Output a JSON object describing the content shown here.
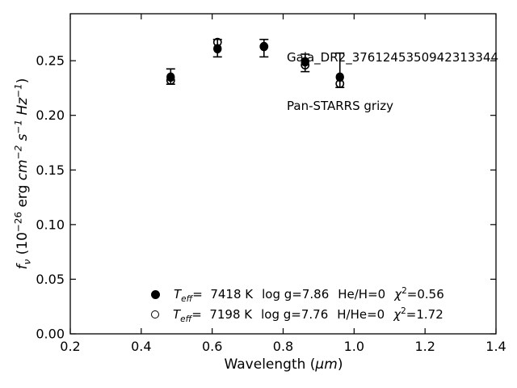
{
  "figure": {
    "background": "#ffffff",
    "foreground": "#000000"
  },
  "axes": {
    "xlabel": {
      "pre": "Wavelength (",
      "unit": "μm",
      "post": ")"
    },
    "ylabel": {
      "f": "f",
      "nu": "ν",
      "p1": " (10",
      "exp": "−26",
      "p2": " erg ",
      "cm": "cm",
      "cm_exp": "−2",
      "s": " s",
      "s_exp": "−1",
      "hz": " Hz",
      "hz_exp": "−1",
      "p3": ")"
    }
  },
  "legend": {
    "entries": [
      {
        "marker": "filled-circle",
        "T": "T",
        "T_sub": "eff",
        "teff_value": "=  7418 K",
        "logg": "log g=7.86",
        "composition": "He/H=0",
        "chi": "χ",
        "chi_exp": "2",
        "chi_value": "=0.56"
      },
      {
        "marker": "open-circle",
        "T": "T",
        "T_sub": "eff",
        "teff_value": "=  7198 K",
        "logg": "log g=7.76",
        "composition": "H/He=0",
        "chi": "χ",
        "chi_exp": "2",
        "chi_value": "=1.72"
      }
    ]
  },
  "chart_data": {
    "type": "scatter",
    "title": "Gaia_DR2_3761245350942313344",
    "subtitle": "Pan-STARRS grizy",
    "xlabel": "Wavelength (μm)",
    "ylabel": "f_ν (10^−26 erg cm^−2 s^−1 Hz^−1)",
    "xlim": [
      0.2,
      1.4
    ],
    "ylim": [
      0.0,
      0.293
    ],
    "xticks": [
      "0.2",
      "0.4",
      "0.6",
      "0.8",
      "1.0",
      "1.2",
      "1.4"
    ],
    "yticks": [
      "0.00",
      "0.05",
      "0.10",
      "0.15",
      "0.20",
      "0.25"
    ],
    "grid": false,
    "tick_style": "inward-all-sides",
    "legend_position": "lower center, inside axes",
    "x": [
      0.483,
      0.615,
      0.746,
      0.862,
      0.96
    ],
    "series": [
      {
        "name": "Teff= 7418 K  log g=7.86  He/H=0  chi2=0.56",
        "marker": "filled-circle",
        "y": [
          0.235,
          0.261,
          0.263,
          0.249,
          0.235
        ],
        "y_err_bottom": [
          0.2285,
          0.2535,
          0.2535,
          0.24,
          0.2255
        ],
        "y_err_top": [
          0.2425,
          0.2695,
          0.2695,
          0.256,
          0.257
        ]
      },
      {
        "name": "Teff= 7198 K  log g=7.76  H/He=0  chi2=1.72",
        "marker": "open-circle",
        "y": [
          0.232,
          0.267,
          0.263,
          0.246,
          0.229
        ]
      }
    ]
  }
}
